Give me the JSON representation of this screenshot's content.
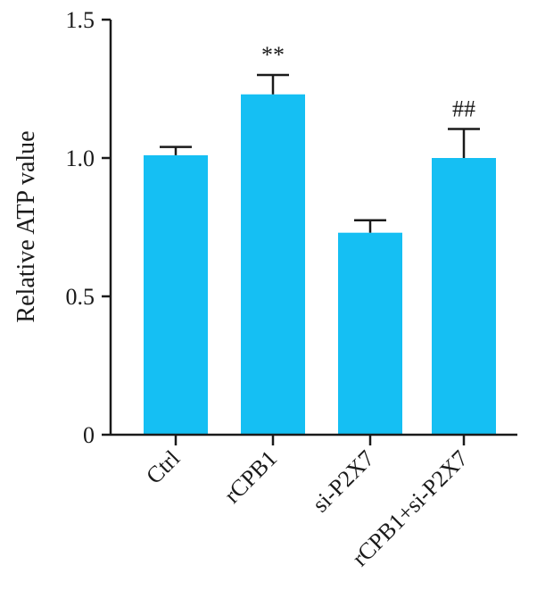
{
  "chart_data": {
    "type": "bar",
    "title": "",
    "xlabel": "",
    "ylabel": "Relative ATP value",
    "ylim": [
      0,
      1.5
    ],
    "yticks": [
      {
        "value": 0,
        "label": "0"
      },
      {
        "value": 0.5,
        "label": "0.5"
      },
      {
        "value": 1.0,
        "label": "1.0"
      },
      {
        "value": 1.5,
        "label": "1.5"
      }
    ],
    "categories": [
      "Ctrl",
      "rCPB1",
      "si-P2X7",
      "rCPB1+si-P2X7"
    ],
    "values": [
      1.01,
      1.23,
      0.73,
      1.0
    ],
    "errors": [
      0.03,
      0.07,
      0.045,
      0.105
    ],
    "annotations": [
      "",
      "**",
      "",
      "##"
    ],
    "grid": false,
    "colors": {
      "bar": "#15BFF3",
      "axis": "#1a1a1a",
      "text": "#1a1a1a"
    }
  }
}
